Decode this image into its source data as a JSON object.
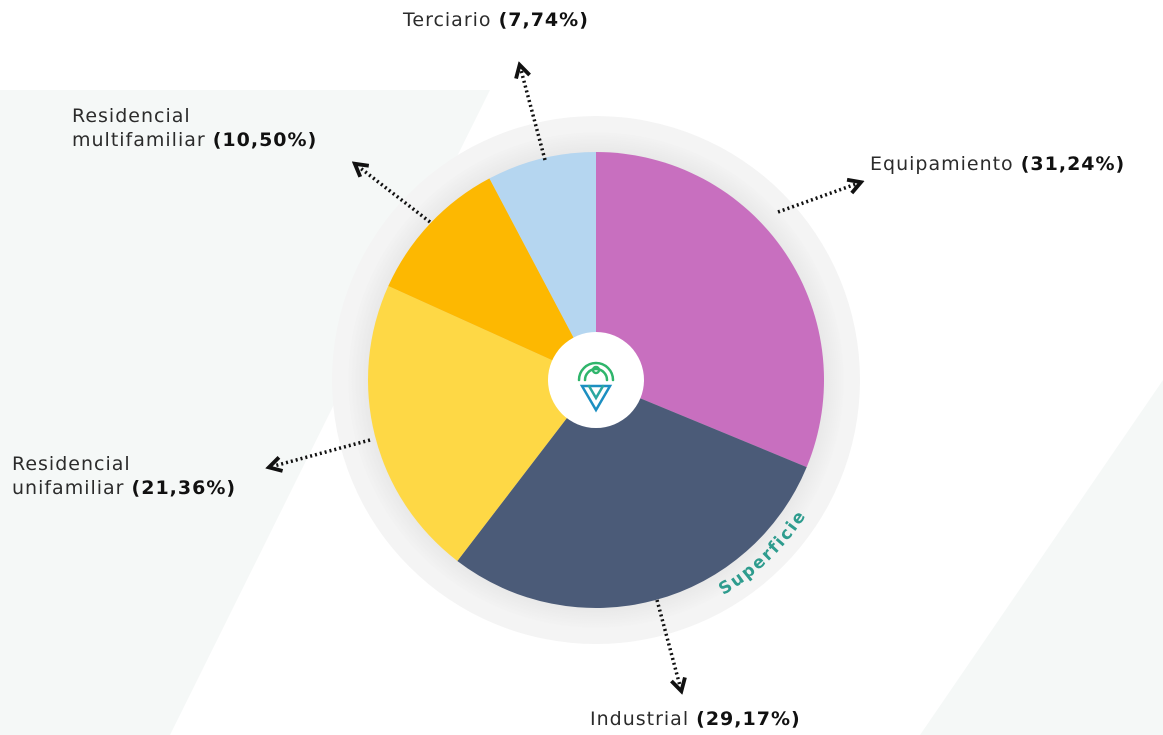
{
  "chart_data": {
    "type": "pie",
    "categories": [
      "Equipamiento",
      "Industrial",
      "Residencial\nunifamiliar",
      "Residencial\nmultifamiliar",
      "Terciario"
    ],
    "values": [
      31.24,
      29.17,
      21.36,
      10.5,
      7.74
    ],
    "value_labels": [
      "(31,24%)",
      "(29,17%)",
      "(21,36%)",
      "(10,50%)",
      "(7,74%)"
    ],
    "colors": [
      "#c86fbf",
      "#4b5b78",
      "#fed845",
      "#fdb801",
      "#b5d6f0"
    ],
    "annotation": "Superficie"
  }
}
